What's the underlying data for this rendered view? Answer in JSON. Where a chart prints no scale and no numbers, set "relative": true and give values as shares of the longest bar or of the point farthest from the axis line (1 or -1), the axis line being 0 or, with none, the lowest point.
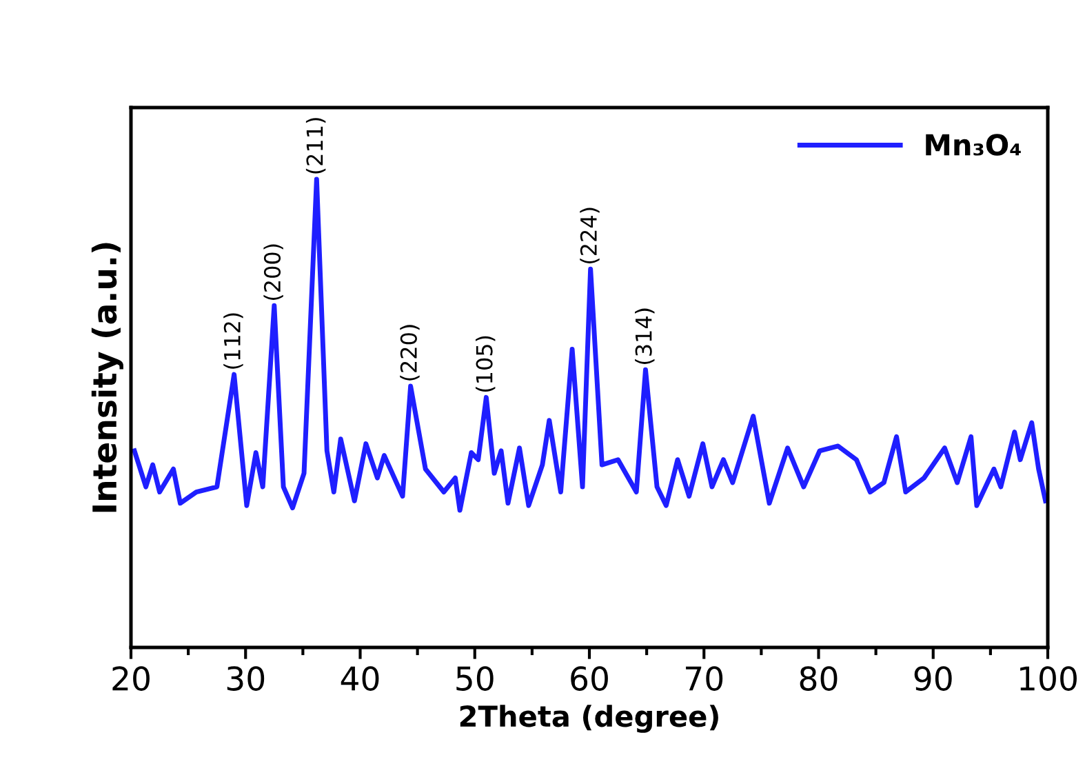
{
  "chart_data": {
    "type": "line",
    "relative": true,
    "xlabel": "2Theta (degree)",
    "ylabel": "Intensity (a.u.)",
    "xlim": [
      20,
      100
    ],
    "xticks": [
      20,
      {
        "value": 25,
        "label": null
      },
      30,
      {
        "value": 35,
        "label": null
      },
      40,
      {
        "value": 45,
        "label": null
      },
      50,
      {
        "value": 55,
        "label": null
      },
      60,
      {
        "value": 65,
        "label": null
      },
      70,
      {
        "value": 75,
        "label": null
      },
      80,
      {
        "value": 85,
        "label": null
      },
      90,
      {
        "value": 95,
        "label": null
      },
      100
    ],
    "tick_labels": "x",
    "grid": false,
    "legend": "top right",
    "marker": "none",
    "line_style": "solid",
    "series": [
      {
        "name": "Mn₃O₄",
        "color": "#1f1fff",
        "x": [
          20.3,
          21.3,
          21.9,
          22.5,
          23.7,
          24.3,
          25.7,
          27.5,
          29.0,
          30.1,
          30.9,
          31.5,
          32.5,
          33.3,
          34.1,
          35.1,
          36.2,
          37.1,
          37.7,
          38.3,
          39.5,
          40.5,
          41.5,
          42.1,
          43.7,
          44.4,
          45.7,
          47.3,
          48.3,
          48.7,
          49.7,
          50.3,
          51.0,
          51.7,
          52.3,
          52.9,
          53.9,
          54.7,
          55.9,
          56.5,
          57.5,
          58.5,
          59.4,
          60.1,
          61.1,
          62.5,
          64.1,
          64.9,
          65.9,
          66.7,
          67.7,
          68.7,
          69.9,
          70.7,
          71.7,
          72.5,
          74.3,
          75.7,
          77.3,
          78.7,
          80.1,
          81.7,
          83.3,
          84.5,
          85.7,
          86.8,
          87.6,
          89.2,
          91.0,
          92.1,
          93.3,
          93.8,
          95.3,
          95.9,
          97.1,
          97.6,
          98.6,
          99.2,
          99.8
        ],
        "values": [
          0.42,
          0.343,
          0.39,
          0.332,
          0.381,
          0.308,
          0.332,
          0.343,
          0.583,
          0.303,
          0.416,
          0.343,
          0.73,
          0.343,
          0.298,
          0.372,
          1.0,
          0.42,
          0.332,
          0.445,
          0.313,
          0.435,
          0.362,
          0.41,
          0.323,
          0.558,
          0.381,
          0.332,
          0.362,
          0.293,
          0.416,
          0.401,
          0.534,
          0.372,
          0.42,
          0.308,
          0.426,
          0.303,
          0.39,
          0.485,
          0.332,
          0.637,
          0.343,
          0.808,
          0.39,
          0.401,
          0.332,
          0.593,
          0.343,
          0.303,
          0.401,
          0.323,
          0.435,
          0.343,
          0.401,
          0.352,
          0.494,
          0.308,
          0.426,
          0.343,
          0.42,
          0.43,
          0.401,
          0.332,
          0.352,
          0.45,
          0.332,
          0.362,
          0.426,
          0.352,
          0.45,
          0.303,
          0.381,
          0.343,
          0.46,
          0.401,
          0.48,
          0.381,
          0.313
        ]
      }
    ],
    "annotations": [
      {
        "text": "(112)",
        "x": 29.0,
        "y": 0.583
      },
      {
        "text": "(200)",
        "x": 32.5,
        "y": 0.73
      },
      {
        "text": "(211)",
        "x": 36.2,
        "y": 1.0
      },
      {
        "text": "(220)",
        "x": 44.4,
        "y": 0.558
      },
      {
        "text": "(105)",
        "x": 51.0,
        "y": 0.534
      },
      {
        "text": "(224)",
        "x": 60.1,
        "y": 0.808
      },
      {
        "text": "(314)",
        "x": 64.9,
        "y": 0.593
      }
    ]
  }
}
